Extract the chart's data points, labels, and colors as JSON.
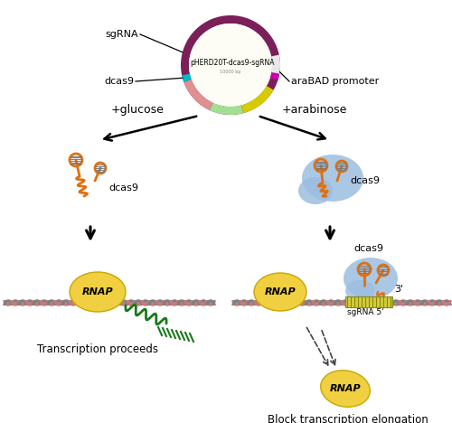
{
  "plasmid_label": "pHERD20T-dcas9-sgRNA",
  "plasmid_sublabel": "10000 bp",
  "label_sgRNA": "sgRNA",
  "label_dcas9_plasmid": "dcas9",
  "label_araBAD": "araBAD promoter",
  "label_glucose": "+glucose",
  "label_arabinose": "+arabinose",
  "label_dcas9_left": "dcas9",
  "label_dcas9_right": "dcas9",
  "label_RNAP_left": "RNAP",
  "label_RNAP_right": "RNAP",
  "label_RNAP_block": "RNAP",
  "label_3prime": "3'",
  "label_5prime": "sgRNA 5'",
  "label_transcription_proceeds": "Transcription proceeds",
  "label_block_transcription": "Block transcription elongation",
  "plasmid_ring_color": "#7B1F5B",
  "orange_color": "#E07010",
  "blue_blob_color": "#9BBDE0",
  "yellow_color": "#F0D040",
  "yellow_edge": "#C8A800",
  "dna_pink": "#C87878",
  "dna_gray": "#808080",
  "green_color": "#1A7A1A",
  "seg_green": "#A0E090",
  "seg_yellow": "#D4CC00",
  "seg_pink": "#E09090",
  "seg_cyan": "#00BBCC",
  "seg_white": "#E8E8E8",
  "seg_dark_green": "#005500",
  "seg_magenta": "#CC00AA"
}
